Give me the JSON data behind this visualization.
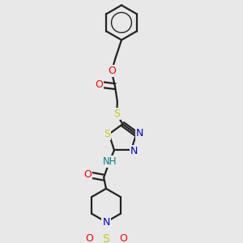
{
  "background_color": "#e8e8e8",
  "bond_color": "#222222",
  "colors": {
    "O": "#ff0000",
    "N": "#0000cc",
    "S": "#cccc00",
    "NH": "#008080",
    "C": "#222222"
  },
  "figsize": [
    3.0,
    3.0
  ],
  "dpi": 100
}
